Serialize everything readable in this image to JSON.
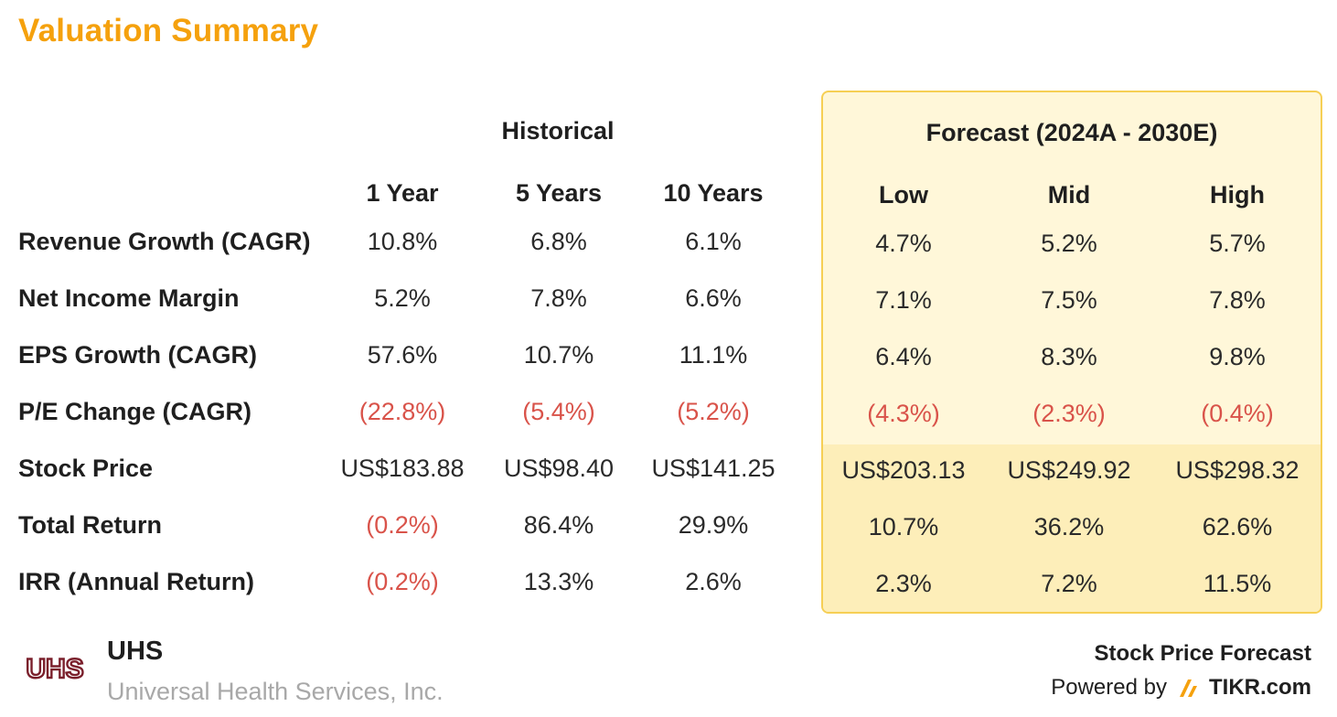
{
  "title": "Valuation Summary",
  "groups": {
    "historical": "Historical",
    "forecast": "Forecast (2024A - 2030E)"
  },
  "columns": {
    "historical": [
      "1 Year",
      "5 Years",
      "10 Years"
    ],
    "forecast": [
      "Low",
      "Mid",
      "High"
    ]
  },
  "rows": [
    {
      "label": "Revenue Growth (CAGR)",
      "historical": [
        "10.8%",
        "6.8%",
        "6.1%"
      ],
      "forecast": [
        "4.7%",
        "5.2%",
        "5.7%"
      ]
    },
    {
      "label": "Net Income Margin",
      "historical": [
        "5.2%",
        "7.8%",
        "6.6%"
      ],
      "forecast": [
        "7.1%",
        "7.5%",
        "7.8%"
      ]
    },
    {
      "label": "EPS Growth (CAGR)",
      "historical": [
        "57.6%",
        "10.7%",
        "11.1%"
      ],
      "forecast": [
        "6.4%",
        "8.3%",
        "9.8%"
      ]
    },
    {
      "label": "P/E Change (CAGR)",
      "historical": [
        "(22.8%)",
        "(5.4%)",
        "(5.2%)"
      ],
      "forecast": [
        "(4.3%)",
        "(2.3%)",
        "(0.4%)"
      ]
    },
    {
      "label": "Stock Price",
      "historical": [
        "US$183.88",
        "US$98.40",
        "US$141.25"
      ],
      "forecast": [
        "US$203.13",
        "US$249.92",
        "US$298.32"
      ]
    },
    {
      "label": "Total Return",
      "historical": [
        "(0.2%)",
        "86.4%",
        "29.9%"
      ],
      "forecast": [
        "10.7%",
        "36.2%",
        "62.6%"
      ]
    },
    {
      "label": "IRR (Annual Return)",
      "historical": [
        "(0.2%)",
        "13.3%",
        "2.6%"
      ],
      "forecast": [
        "2.3%",
        "7.2%",
        "11.5%"
      ]
    }
  ],
  "footer": {
    "logo_text": "UHS",
    "ticker": "UHS",
    "company": "Universal Health Services, Inc.",
    "brand_title": "Stock Price Forecast",
    "powered_by": "Powered by",
    "brand": "TIKR.com"
  },
  "colors": {
    "title": "#f5a10d",
    "negative": "#d9534a",
    "forecast_bg": "#fff7d9",
    "forecast_border": "#f6cf55",
    "price_band": "#fdeeb9",
    "logo": "#7a1f2b",
    "tikr_icon": "#f5a10d"
  },
  "icons": {
    "logo": "uhs-logo",
    "brand": "tikr-logo-icon"
  }
}
